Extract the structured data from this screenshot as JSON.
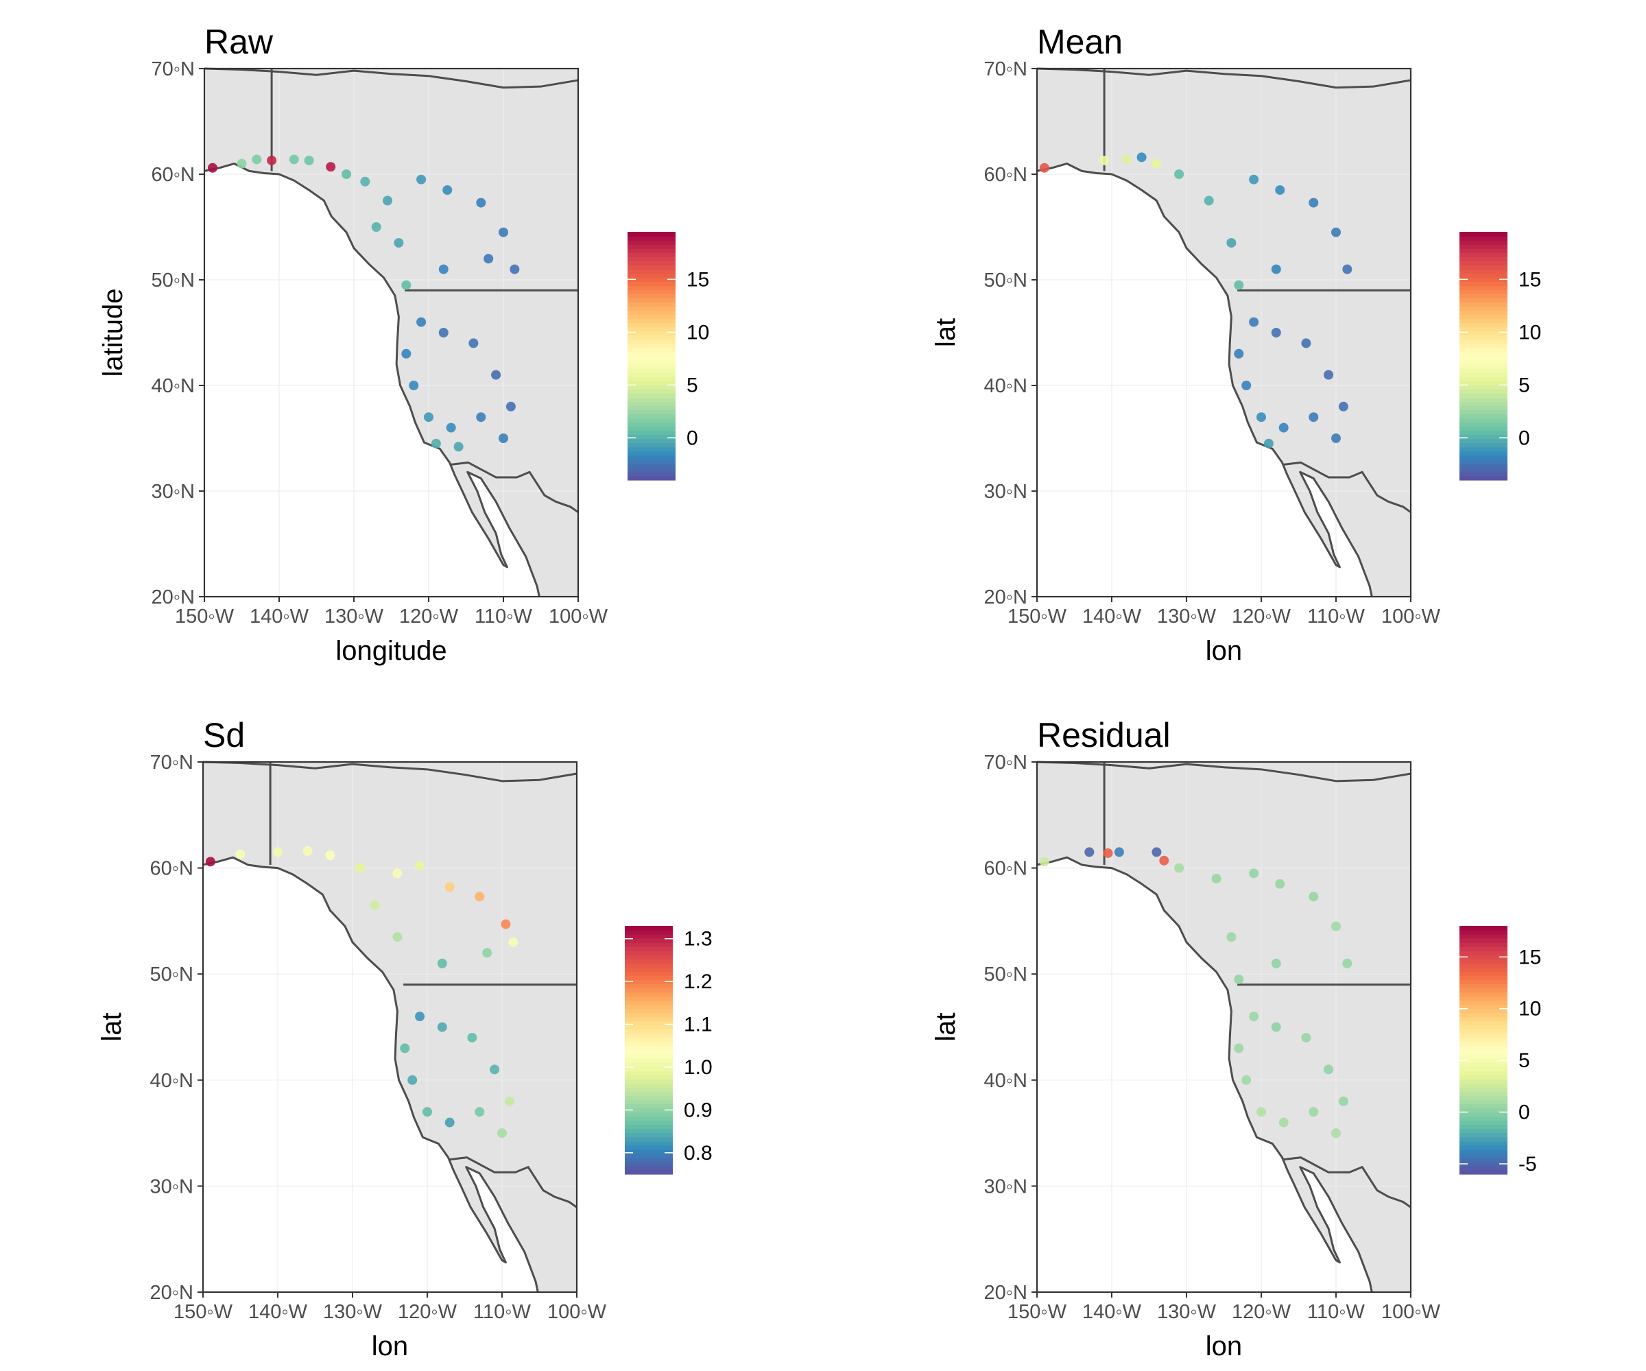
{
  "chart_data": [
    {
      "type": "scatter",
      "title": "Raw",
      "xlabel": "longitude",
      "ylabel": "latitude",
      "xlim": [
        -150,
        -100
      ],
      "ylim": [
        20,
        70
      ],
      "x_ticks": [
        "150◦W",
        "140◦W",
        "130◦W",
        "120◦W",
        "110◦W",
        "100◦W"
      ],
      "y_ticks": [
        "20◦N",
        "30◦N",
        "40◦N",
        "50◦N",
        "60◦N",
        "70◦N"
      ],
      "legend": {
        "position": "right",
        "ticks": [
          "15",
          "10",
          "5",
          "0"
        ],
        "tick_values": [
          15,
          10,
          5,
          0
        ],
        "range": [
          -4,
          19.5
        ]
      },
      "points": [
        {
          "lon": -148.9,
          "lat": 60.6,
          "v": 19
        },
        {
          "lon": -141.0,
          "lat": 61.3,
          "v": 18
        },
        {
          "lon": -133.1,
          "lat": 60.7,
          "v": 18.5
        },
        {
          "lon": -145.0,
          "lat": 61.0,
          "v": 2
        },
        {
          "lon": -143.0,
          "lat": 61.4,
          "v": 1.5
        },
        {
          "lon": -138.0,
          "lat": 61.4,
          "v": 1.2
        },
        {
          "lon": -136.0,
          "lat": 61.3,
          "v": 1.0
        },
        {
          "lon": -131.0,
          "lat": 60.0,
          "v": 0.5
        },
        {
          "lon": -128.5,
          "lat": 59.3,
          "v": 0.0
        },
        {
          "lon": -125.5,
          "lat": 57.5,
          "v": -0.5
        },
        {
          "lon": -121.0,
          "lat": 59.5,
          "v": -1.0
        },
        {
          "lon": -117.5,
          "lat": 58.5,
          "v": -1.5
        },
        {
          "lon": -113.0,
          "lat": 57.3,
          "v": -2.0
        },
        {
          "lon": -110.0,
          "lat": 54.5,
          "v": -2.2
        },
        {
          "lon": -108.5,
          "lat": 51.0,
          "v": -2.5
        },
        {
          "lon": -112.0,
          "lat": 52.0,
          "v": -2.3
        },
        {
          "lon": -118.0,
          "lat": 51.0,
          "v": -1.8
        },
        {
          "lon": -124.0,
          "lat": 53.5,
          "v": -0.5
        },
        {
          "lon": -127.0,
          "lat": 55.0,
          "v": 0.0
        },
        {
          "lon": -123.0,
          "lat": 49.5,
          "v": 0.5
        },
        {
          "lon": -121.0,
          "lat": 46.0,
          "v": -2.0
        },
        {
          "lon": -118.0,
          "lat": 45.0,
          "v": -2.5
        },
        {
          "lon": -114.0,
          "lat": 44.0,
          "v": -2.5
        },
        {
          "lon": -111.0,
          "lat": 41.0,
          "v": -2.8
        },
        {
          "lon": -109.0,
          "lat": 38.0,
          "v": -2.6
        },
        {
          "lon": -113.0,
          "lat": 37.0,
          "v": -2.0
        },
        {
          "lon": -117.0,
          "lat": 36.0,
          "v": -1.5
        },
        {
          "lon": -120.0,
          "lat": 37.0,
          "v": -1.0
        },
        {
          "lon": -122.0,
          "lat": 40.0,
          "v": -1.6
        },
        {
          "lon": -123.0,
          "lat": 43.0,
          "v": -1.8
        },
        {
          "lon": -119.0,
          "lat": 34.5,
          "v": -0.2
        },
        {
          "lon": -116.0,
          "lat": 34.2,
          "v": -0.5
        },
        {
          "lon": -110.0,
          "lat": 35.0,
          "v": -2.0
        }
      ]
    },
    {
      "type": "scatter",
      "title": "Mean",
      "xlabel": "lon",
      "ylabel": "lat",
      "xlim": [
        -150,
        -100
      ],
      "ylim": [
        20,
        70
      ],
      "x_ticks": [
        "150◦W",
        "140◦W",
        "130◦W",
        "120◦W",
        "110◦W",
        "100◦W"
      ],
      "y_ticks": [
        "20◦N",
        "30◦N",
        "40◦N",
        "50◦N",
        "60◦N",
        "70◦N"
      ],
      "legend": {
        "position": "right",
        "ticks": [
          "15",
          "10",
          "5",
          "0"
        ],
        "tick_values": [
          15,
          10,
          5,
          0
        ],
        "range": [
          -4,
          19.5
        ]
      },
      "points": [
        {
          "lon": -149.0,
          "lat": 60.6,
          "v": 16
        },
        {
          "lon": -141.0,
          "lat": 61.3,
          "v": 6
        },
        {
          "lon": -138.0,
          "lat": 61.4,
          "v": 5
        },
        {
          "lon": -134.0,
          "lat": 61.0,
          "v": 5.5
        },
        {
          "lon": -136.0,
          "lat": 61.6,
          "v": -1.5
        },
        {
          "lon": -131.0,
          "lat": 60.0,
          "v": 0.5
        },
        {
          "lon": -127.0,
          "lat": 57.5,
          "v": 0.0
        },
        {
          "lon": -121.0,
          "lat": 59.5,
          "v": -1.0
        },
        {
          "lon": -117.5,
          "lat": 58.5,
          "v": -1.5
        },
        {
          "lon": -113.0,
          "lat": 57.3,
          "v": -2.0
        },
        {
          "lon": -110.0,
          "lat": 54.5,
          "v": -2.2
        },
        {
          "lon": -108.5,
          "lat": 51.0,
          "v": -2.5
        },
        {
          "lon": -118.0,
          "lat": 51.0,
          "v": -1.8
        },
        {
          "lon": -124.0,
          "lat": 53.5,
          "v": -0.5
        },
        {
          "lon": -123.0,
          "lat": 49.5,
          "v": 0.5
        },
        {
          "lon": -121.0,
          "lat": 46.0,
          "v": -2.2
        },
        {
          "lon": -118.0,
          "lat": 45.0,
          "v": -2.6
        },
        {
          "lon": -114.0,
          "lat": 44.0,
          "v": -2.6
        },
        {
          "lon": -111.0,
          "lat": 41.0,
          "v": -2.8
        },
        {
          "lon": -109.0,
          "lat": 38.0,
          "v": -2.7
        },
        {
          "lon": -113.0,
          "lat": 37.0,
          "v": -2.2
        },
        {
          "lon": -117.0,
          "lat": 36.0,
          "v": -1.8
        },
        {
          "lon": -120.0,
          "lat": 37.0,
          "v": -1.4
        },
        {
          "lon": -122.0,
          "lat": 40.0,
          "v": -1.9
        },
        {
          "lon": -123.0,
          "lat": 43.0,
          "v": -2.0
        },
        {
          "lon": -119.0,
          "lat": 34.5,
          "v": -0.8
        },
        {
          "lon": -110.0,
          "lat": 35.0,
          "v": -2.2
        }
      ]
    },
    {
      "type": "scatter",
      "title": "Sd",
      "xlabel": "lon",
      "ylabel": "lat",
      "xlim": [
        -150,
        -100
      ],
      "ylim": [
        20,
        70
      ],
      "x_ticks": [
        "150◦W",
        "140◦W",
        "130◦W",
        "120◦W",
        "110◦W",
        "100◦W"
      ],
      "y_ticks": [
        "20◦N",
        "30◦N",
        "40◦N",
        "50◦N",
        "60◦N",
        "70◦N"
      ],
      "legend": {
        "position": "right",
        "ticks": [
          "1.3",
          "1.2",
          "1.1",
          "1.0",
          "0.9",
          "0.8"
        ],
        "tick_values": [
          1.3,
          1.2,
          1.1,
          1.0,
          0.9,
          0.8
        ],
        "range": [
          0.75,
          1.33
        ]
      },
      "points": [
        {
          "lon": -149.0,
          "lat": 60.6,
          "v": 1.32
        },
        {
          "lon": -145.0,
          "lat": 61.3,
          "v": 1.02
        },
        {
          "lon": -140.0,
          "lat": 61.5,
          "v": 1.01
        },
        {
          "lon": -136.0,
          "lat": 61.6,
          "v": 1.02
        },
        {
          "lon": -133.0,
          "lat": 61.2,
          "v": 1.03
        },
        {
          "lon": -129.0,
          "lat": 60.0,
          "v": 0.98
        },
        {
          "lon": -124.0,
          "lat": 59.5,
          "v": 1.02
        },
        {
          "lon": -121.0,
          "lat": 60.2,
          "v": 0.99
        },
        {
          "lon": -117.0,
          "lat": 58.2,
          "v": 1.12
        },
        {
          "lon": -113.0,
          "lat": 57.3,
          "v": 1.15
        },
        {
          "lon": -109.5,
          "lat": 54.7,
          "v": 1.19
        },
        {
          "lon": -108.5,
          "lat": 53.0,
          "v": 1.02
        },
        {
          "lon": -112.0,
          "lat": 52.0,
          "v": 0.9
        },
        {
          "lon": -118.0,
          "lat": 51.0,
          "v": 0.86
        },
        {
          "lon": -124.0,
          "lat": 53.5,
          "v": 0.93
        },
        {
          "lon": -127.0,
          "lat": 56.5,
          "v": 0.96
        },
        {
          "lon": -121.0,
          "lat": 46.0,
          "v": 0.82
        },
        {
          "lon": -118.0,
          "lat": 45.0,
          "v": 0.84
        },
        {
          "lon": -114.0,
          "lat": 44.0,
          "v": 0.86
        },
        {
          "lon": -111.0,
          "lat": 41.0,
          "v": 0.85
        },
        {
          "lon": -109.0,
          "lat": 38.0,
          "v": 0.95
        },
        {
          "lon": -113.0,
          "lat": 37.0,
          "v": 0.88
        },
        {
          "lon": -117.0,
          "lat": 36.0,
          "v": 0.83
        },
        {
          "lon": -120.0,
          "lat": 37.0,
          "v": 0.86
        },
        {
          "lon": -122.0,
          "lat": 40.0,
          "v": 0.84
        },
        {
          "lon": -123.0,
          "lat": 43.0,
          "v": 0.86
        },
        {
          "lon": -110.0,
          "lat": 35.0,
          "v": 0.92
        }
      ]
    },
    {
      "type": "scatter",
      "title": "Residual",
      "xlabel": "lon",
      "ylabel": "lat",
      "xlim": [
        -150,
        -100
      ],
      "ylim": [
        20,
        70
      ],
      "x_ticks": [
        "150◦W",
        "140◦W",
        "130◦W",
        "120◦W",
        "110◦W",
        "100◦W"
      ],
      "y_ticks": [
        "20◦N",
        "30◦N",
        "40◦N",
        "50◦N",
        "60◦N",
        "70◦N"
      ],
      "legend": {
        "position": "right",
        "ticks": [
          "15",
          "10",
          "5",
          "0",
          "-5"
        ],
        "tick_values": [
          15,
          10,
          5,
          0,
          -5
        ],
        "range": [
          -6,
          18
        ]
      },
      "points": [
        {
          "lon": -149.0,
          "lat": 60.6,
          "v": 2.5
        },
        {
          "lon": -143.0,
          "lat": 61.5,
          "v": -5
        },
        {
          "lon": -140.5,
          "lat": 61.4,
          "v": 14
        },
        {
          "lon": -139.0,
          "lat": 61.5,
          "v": -4
        },
        {
          "lon": -134.0,
          "lat": 61.5,
          "v": -5
        },
        {
          "lon": -133.0,
          "lat": 60.7,
          "v": 14
        },
        {
          "lon": -131.0,
          "lat": 60.0,
          "v": 1
        },
        {
          "lon": -126.0,
          "lat": 59.0,
          "v": 0.5
        },
        {
          "lon": -121.0,
          "lat": 59.5,
          "v": 0.3
        },
        {
          "lon": -117.5,
          "lat": 58.5,
          "v": 0.5
        },
        {
          "lon": -113.0,
          "lat": 57.3,
          "v": 0.5
        },
        {
          "lon": -110.0,
          "lat": 54.5,
          "v": 0.8
        },
        {
          "lon": -108.5,
          "lat": 51.0,
          "v": 0.5
        },
        {
          "lon": -118.0,
          "lat": 51.0,
          "v": 0.3
        },
        {
          "lon": -124.0,
          "lat": 53.5,
          "v": 0.7
        },
        {
          "lon": -123.0,
          "lat": 49.5,
          "v": 0.4
        },
        {
          "lon": -121.0,
          "lat": 46.0,
          "v": 0.6
        },
        {
          "lon": -118.0,
          "lat": 45.0,
          "v": 0.2
        },
        {
          "lon": -114.0,
          "lat": 44.0,
          "v": 0.5
        },
        {
          "lon": -111.0,
          "lat": 41.0,
          "v": 0.3
        },
        {
          "lon": -109.0,
          "lat": 38.0,
          "v": 0.5
        },
        {
          "lon": -113.0,
          "lat": 37.0,
          "v": 0.7
        },
        {
          "lon": -117.0,
          "lat": 36.0,
          "v": 1.0
        },
        {
          "lon": -120.0,
          "lat": 37.0,
          "v": 1.5
        },
        {
          "lon": -122.0,
          "lat": 40.0,
          "v": 0.8
        },
        {
          "lon": -123.0,
          "lat": 43.0,
          "v": 0.7
        },
        {
          "lon": -110.0,
          "lat": 35.0,
          "v": 1.2
        }
      ]
    }
  ]
}
